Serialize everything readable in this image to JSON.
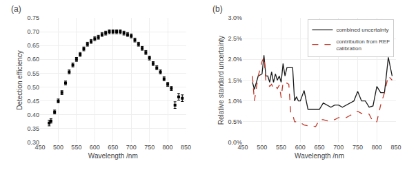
{
  "chart_data": [
    {
      "type": "scatter",
      "x": [
        475,
        480,
        490,
        500,
        510,
        520,
        530,
        540,
        550,
        560,
        570,
        580,
        590,
        600,
        610,
        620,
        630,
        640,
        650,
        660,
        670,
        680,
        690,
        700,
        710,
        720,
        730,
        740,
        750,
        760,
        770,
        780,
        790,
        800,
        810,
        820,
        830,
        840
      ],
      "values": [
        0.37,
        0.378,
        0.41,
        0.45,
        0.48,
        0.515,
        0.555,
        0.58,
        0.6,
        0.618,
        0.638,
        0.655,
        0.665,
        0.675,
        0.68,
        0.69,
        0.695,
        0.7,
        0.7,
        0.7,
        0.7,
        0.695,
        0.69,
        0.685,
        0.67,
        0.655,
        0.64,
        0.625,
        0.605,
        0.585,
        0.57,
        0.555,
        0.53,
        0.51,
        0.495,
        0.435,
        0.465,
        0.46
      ],
      "yerr": [
        0.01,
        0.008,
        0.007,
        0.007,
        0.007,
        0.007,
        0.007,
        0.007,
        0.007,
        0.007,
        0.007,
        0.007,
        0.007,
        0.007,
        0.007,
        0.007,
        0.007,
        0.007,
        0.007,
        0.007,
        0.007,
        0.007,
        0.007,
        0.007,
        0.007,
        0.007,
        0.007,
        0.007,
        0.007,
        0.007,
        0.007,
        0.007,
        0.007,
        0.007,
        0.007,
        0.012,
        0.012,
        0.012
      ],
      "color": "#000000",
      "marker": "square",
      "xlabel": "Wavelength /nm",
      "ylabel": "Detection efficiency",
      "xlim": [
        450,
        850
      ],
      "ylim": [
        0.3,
        0.75
      ],
      "xticks": [
        450,
        500,
        550,
        600,
        650,
        700,
        750,
        800,
        850
      ],
      "yticks": [
        {
          "value": 0.3,
          "label": "0.30"
        },
        0.35,
        {
          "value": 0.4,
          "label": "0.40"
        },
        0.45,
        {
          "value": 0.5,
          "label": "0.50"
        },
        0.55,
        {
          "value": 0.6,
          "label": "0.60"
        },
        0.65,
        {
          "value": 0.7,
          "label": "0.70"
        },
        0.75
      ],
      "grid": true,
      "annotations": [
        "(a)"
      ]
    },
    {
      "type": "line",
      "x": [
        475,
        480,
        490,
        500,
        505,
        510,
        515,
        520,
        525,
        530,
        535,
        540,
        545,
        550,
        555,
        560,
        565,
        570,
        575,
        580,
        585,
        590,
        595,
        600,
        610,
        620,
        630,
        640,
        650,
        660,
        670,
        680,
        690,
        700,
        710,
        720,
        730,
        740,
        750,
        760,
        770,
        780,
        790,
        800,
        810,
        820,
        830,
        840
      ],
      "series": [
        {
          "name": "combined uncertainty",
          "color": "#1a1a1a",
          "line_style": "solid",
          "values": [
            1.45,
            1.28,
            1.6,
            1.65,
            2.1,
            1.6,
            1.6,
            1.45,
            1.7,
            1.45,
            1.65,
            1.5,
            1.6,
            1.45,
            1.9,
            1.6,
            1.8,
            1.8,
            1.8,
            1.8,
            1.0,
            1.1,
            1.0,
            1.0,
            1.25,
            0.8,
            0.8,
            0.8,
            0.8,
            0.95,
            0.9,
            0.85,
            0.9,
            0.9,
            0.85,
            0.9,
            0.95,
            1.0,
            1.23,
            1.0,
            1.0,
            0.85,
            0.88,
            1.35,
            1.2,
            1.2,
            2.05,
            1.6
          ]
        },
        {
          "name": "contribution from REF\ncalibration",
          "color": "#c0392b",
          "line_style": "dashed",
          "values": [
            1.6,
            1.0,
            1.6,
            1.95,
            2.05,
            1.5,
            1.4,
            1.35,
            1.4,
            1.3,
            1.35,
            1.3,
            1.38,
            1.08,
            1.45,
            1.42,
            1.43,
            1.4,
            0.7,
            0.68,
            0.5,
            0.5,
            0.48,
            0.48,
            0.42,
            0.4,
            0.4,
            0.38,
            0.55,
            0.55,
            0.52,
            0.55,
            0.55,
            0.6,
            0.6,
            0.6,
            0.65,
            0.7,
            0.75,
            0.7,
            0.7,
            0.68,
            0.5,
            0.5,
            0.9,
            1.2,
            1.6,
            1.5
          ]
        }
      ],
      "xlabel": "Wavelength /nm",
      "ylabel": "Relative standard uncertainty",
      "xlim": [
        450,
        850
      ],
      "ylim": [
        0.0,
        3.0
      ],
      "xticks": [
        450,
        500,
        550,
        600,
        650,
        700,
        750,
        800,
        850
      ],
      "yticks": [
        {
          "value": 0.0,
          "label": "0.0%"
        },
        {
          "value": 0.5,
          "label": "0.5%"
        },
        {
          "value": 1.0,
          "label": "1.0%"
        },
        {
          "value": 1.5,
          "label": "1.5%"
        },
        {
          "value": 2.0,
          "label": "2.0%"
        },
        {
          "value": 2.5,
          "label": "2.5%"
        },
        {
          "value": 3.0,
          "label": "3.0%"
        }
      ],
      "grid": true,
      "legend": "upper right",
      "annotations": [
        "(b)"
      ]
    }
  ]
}
